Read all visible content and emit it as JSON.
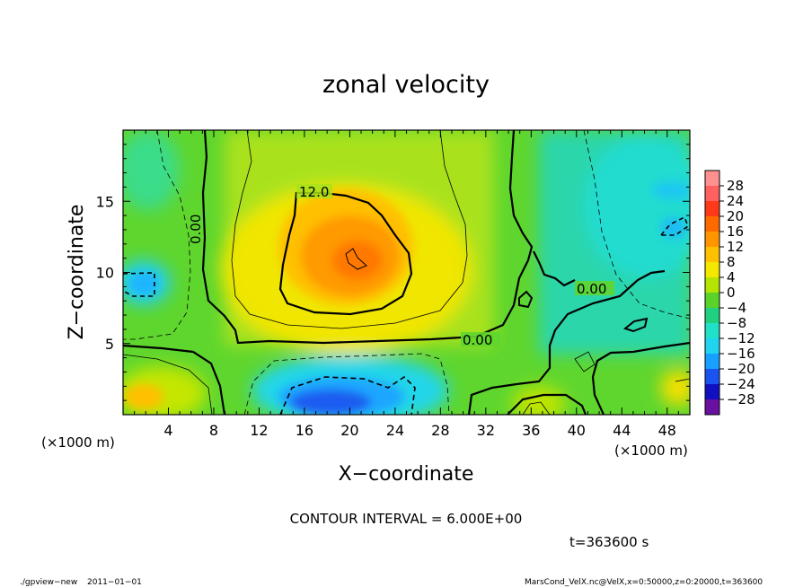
{
  "chart_data": {
    "type": "heatmap",
    "title": "zonal velocity",
    "xlabel": "X−coordinate",
    "ylabel": "Z−coordinate",
    "x_unit": "(×1000 m)",
    "y_unit": "(×1000 m)",
    "xlim": [
      0,
      50
    ],
    "ylim": [
      0,
      20
    ],
    "x_ticks": [
      "4",
      "8",
      "12",
      "16",
      "20",
      "24",
      "28",
      "32",
      "36",
      "40",
      "44",
      "48"
    ],
    "y_ticks": [
      "5",
      "10",
      "15"
    ],
    "colorbar_labels": [
      "28",
      "24",
      "20",
      "16",
      "12",
      "8",
      "4",
      "0",
      "−4",
      "−8",
      "−12",
      "−16",
      "−20",
      "−24",
      "−28"
    ],
    "colorbar_colors": [
      "#ff9090",
      "#ff6060",
      "#ff3a1a",
      "#ff6a00",
      "#ff9600",
      "#ffc000",
      "#f4e800",
      "#b4e400",
      "#5ad22a",
      "#20d080",
      "#20e0c8",
      "#20d4f0",
      "#18a0ff",
      "#1a54f0",
      "#1010c0",
      "#6a10a0"
    ],
    "contour_labels": [
      "12.0",
      "0.00",
      "0.00",
      "0.00"
    ],
    "contour_interval": "CONTOUR INTERVAL = 6.000E+00",
    "time": "t=363600 s",
    "program": "./gpview−new",
    "date": "2011−01−01",
    "source": "MarsCond_VelX.nc@VelX,x=0:50000,z=0:20000,t=363600",
    "features": [
      {
        "name": "positive maximum",
        "x": 21,
        "z": 11,
        "value": 21
      },
      {
        "name": "negative minimum",
        "x": 19,
        "z": 1.5,
        "value": -19
      },
      {
        "name": "negative region",
        "x": 47,
        "z": 15,
        "value": -10
      },
      {
        "name": "negative region",
        "x": 1.5,
        "z": 11.5,
        "value": -10
      }
    ]
  }
}
